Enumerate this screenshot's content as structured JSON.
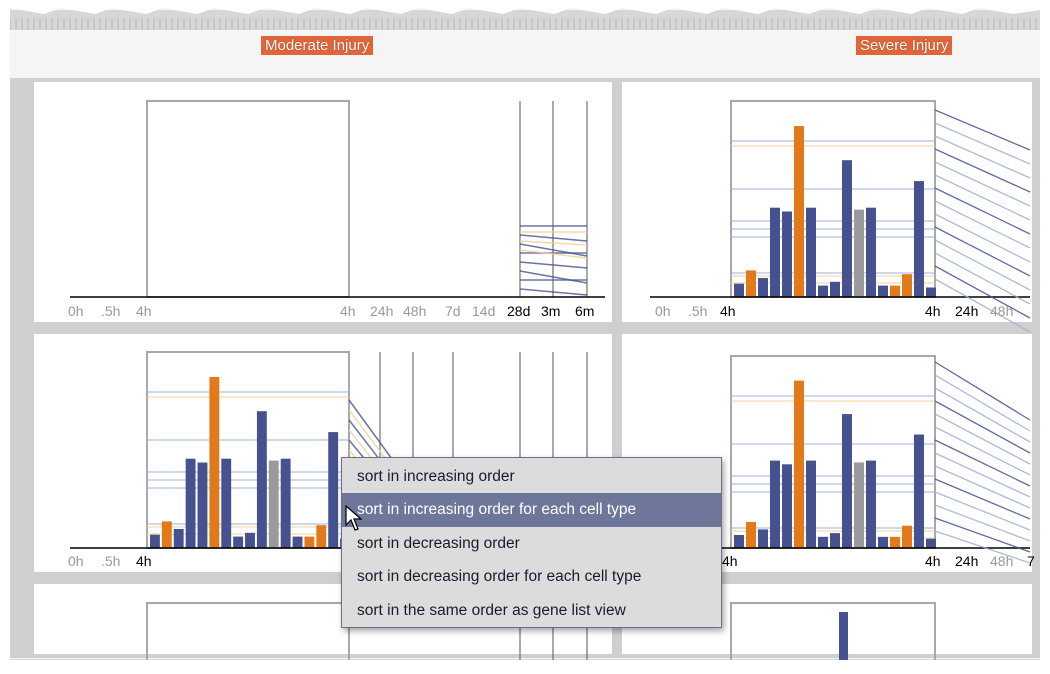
{
  "headers": {
    "moderate": "Moderate Injury",
    "severe": "Severe Injury"
  },
  "axis_ticks": {
    "full": [
      "0h",
      ".5h",
      "4h",
      "4h",
      "24h",
      "48h",
      "7d",
      "14d",
      "28d",
      "3m",
      "6m"
    ],
    "right": [
      "0h",
      ".5h",
      "4h",
      "4h",
      "24h",
      "48h"
    ],
    "left_mid": [
      "0h",
      ".5h",
      "4h"
    ],
    "right_mid": [
      "4h",
      "4h",
      "24h",
      "48h",
      "7"
    ]
  },
  "context_menu": {
    "items": [
      "sort in increasing order",
      "sort in increasing order for each cell type",
      "sort in decreasing order",
      "sort in decreasing order for each cell type",
      "sort in the same order as gene list view"
    ],
    "highlighted_index": 1
  },
  "colors": {
    "blue": "#46528f",
    "orange": "#e27a1a",
    "gray": "#9a9a9a",
    "faint_orange": "#f6cf98",
    "faint_blue": "#9fb0d4",
    "label_bg": "#e0663a",
    "menu_highlight": "#6e7699"
  },
  "bar_series": [
    {
      "c": "blue",
      "v": 0.07
    },
    {
      "c": "orange",
      "v": 0.14
    },
    {
      "c": "blue",
      "v": 0.1
    },
    {
      "c": "blue",
      "v": 0.47
    },
    {
      "c": "blue",
      "v": 0.45
    },
    {
      "c": "orange",
      "v": 0.9
    },
    {
      "c": "blue",
      "v": 0.47
    },
    {
      "c": "blue",
      "v": 0.06
    },
    {
      "c": "blue",
      "v": 0.08
    },
    {
      "c": "blue",
      "v": 0.72
    },
    {
      "c": "gray",
      "v": 0.46
    },
    {
      "c": "blue",
      "v": 0.47
    },
    {
      "c": "blue",
      "v": 0.06
    },
    {
      "c": "orange",
      "v": 0.06
    },
    {
      "c": "orange",
      "v": 0.12
    },
    {
      "c": "blue",
      "v": 0.61
    },
    {
      "c": "blue",
      "v": 0.05
    }
  ]
}
